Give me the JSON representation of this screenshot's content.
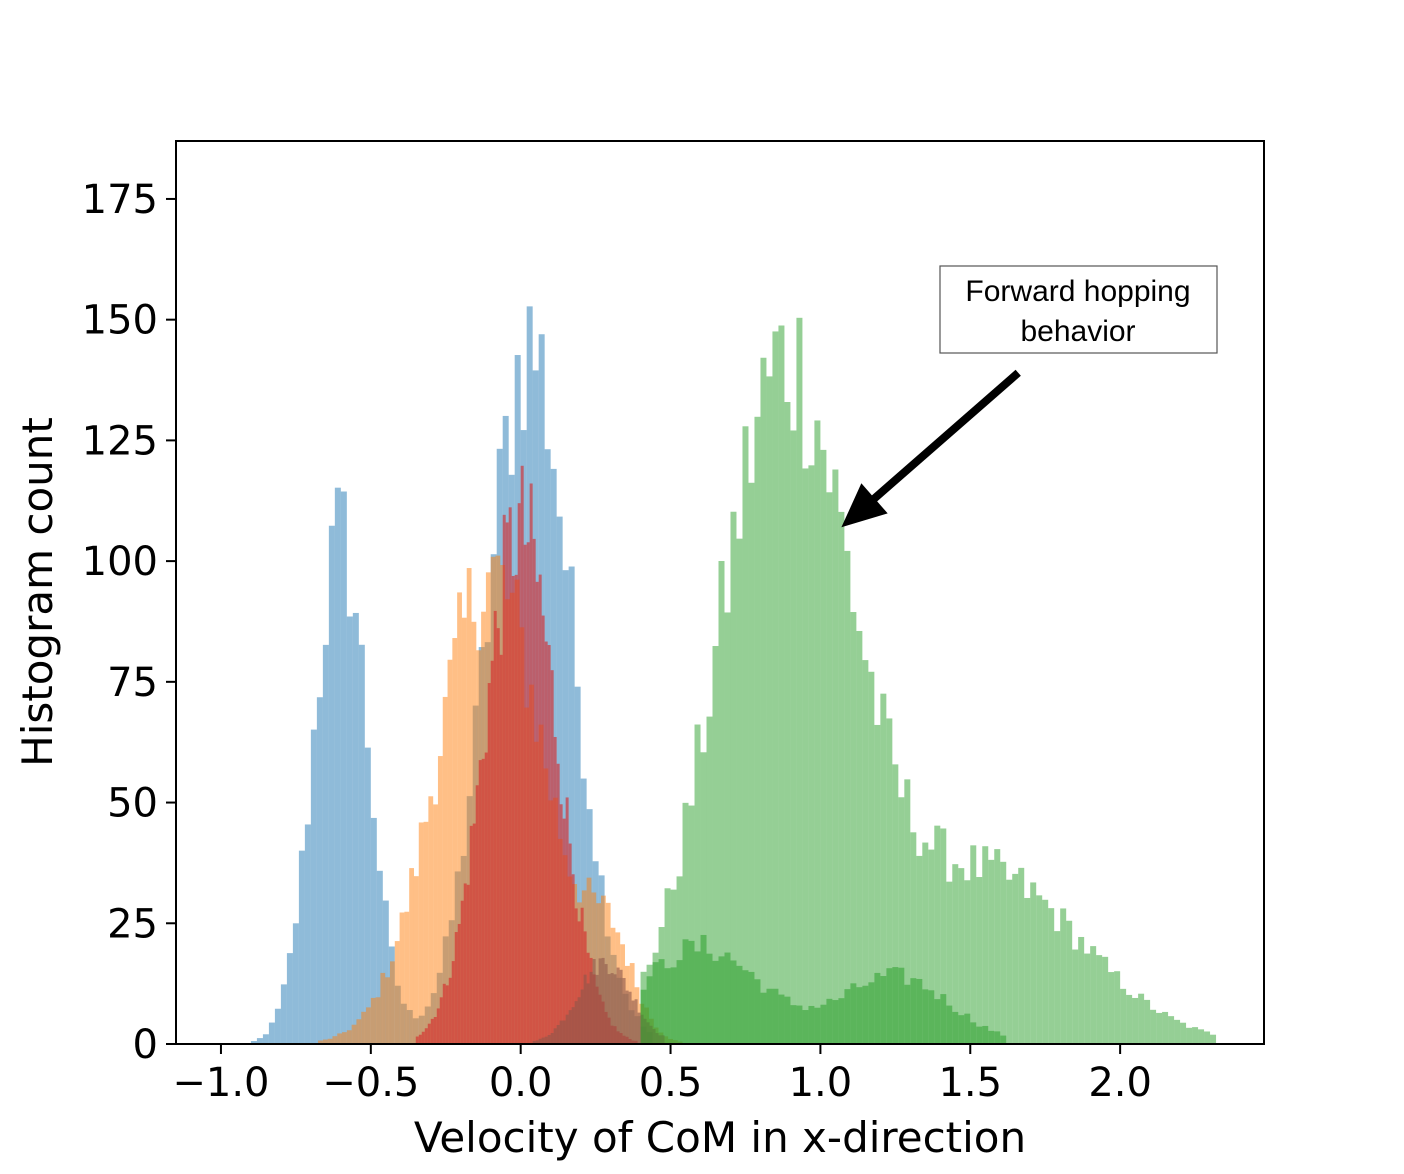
{
  "chart_data": {
    "type": "histogram",
    "title": "",
    "xlabel": "Velocity of CoM in x-direction",
    "ylabel": "Histogram count",
    "xlim": [
      -1.15,
      2.48
    ],
    "ylim": [
      0,
      187
    ],
    "x_ticks": [
      {
        "value": -1.0,
        "label": "−1.0"
      },
      {
        "value": -0.5,
        "label": "−0.5"
      },
      {
        "value": 0.0,
        "label": "0.0"
      },
      {
        "value": 0.5,
        "label": "0.5"
      },
      {
        "value": 1.0,
        "label": "1.0"
      },
      {
        "value": 1.5,
        "label": "1.5"
      },
      {
        "value": 2.0,
        "label": "2.0"
      }
    ],
    "y_ticks": [
      {
        "value": 0,
        "label": "0"
      },
      {
        "value": 25,
        "label": "25"
      },
      {
        "value": 50,
        "label": "50"
      },
      {
        "value": 75,
        "label": "75"
      },
      {
        "value": 100,
        "label": "100"
      },
      {
        "value": 125,
        "label": "125"
      },
      {
        "value": 150,
        "label": "150"
      },
      {
        "value": 175,
        "label": "175"
      }
    ],
    "grid": false,
    "legend": "none",
    "series": [
      {
        "color": "#1f77b4",
        "opacity": 0.5,
        "range": [
          -0.98,
          0.44
        ],
        "bin_width": 0.02,
        "peaks": [
          {
            "mu": -0.6,
            "sigma": 0.09,
            "amp": 105
          },
          {
            "mu": 0.03,
            "sigma": 0.14,
            "amp": 145
          }
        ]
      },
      {
        "color": "#ff7f0e",
        "opacity": 0.5,
        "range": [
          -0.98,
          0.54
        ],
        "bin_width": 0.016,
        "peaks": [
          {
            "mu": -0.1,
            "sigma": 0.18,
            "amp": 97
          },
          {
            "mu": 0.3,
            "sigma": 0.08,
            "amp": 18
          }
        ]
      },
      {
        "color": "#2ca02c",
        "opacity": 0.5,
        "range": [
          0.4,
          2.32
        ],
        "bin_width": 0.02,
        "peaks": [
          {
            "mu": 0.88,
            "sigma": 0.22,
            "amp": 138
          },
          {
            "mu": 1.55,
            "sigma": 0.32,
            "amp": 35
          }
        ]
      },
      {
        "color": "#d62728",
        "opacity": 0.62,
        "range": [
          -0.35,
          0.5
        ],
        "bin_width": 0.01,
        "peaks": [
          {
            "mu": 0.0,
            "sigma": 0.12,
            "amp": 107
          }
        ]
      },
      {
        "color": "#8c564b",
        "opacity": 0.6,
        "range": [
          -0.02,
          0.48
        ],
        "bin_width": 0.01,
        "peaks": [
          {
            "mu": 0.28,
            "sigma": 0.09,
            "amp": 17
          }
        ]
      },
      {
        "color": "#2ca02c",
        "opacity": 0.55,
        "range": [
          0.4,
          1.62
        ],
        "bin_width": 0.02,
        "peaks": [
          {
            "mu": 0.6,
            "sigma": 0.2,
            "amp": 20
          },
          {
            "mu": 1.25,
            "sigma": 0.18,
            "amp": 14
          }
        ]
      }
    ],
    "annotation": {
      "lines": [
        "Forward hopping",
        "behavior"
      ],
      "arrow_from": [
        1.66,
        139
      ],
      "arrow_to": [
        1.07,
        107
      ]
    }
  }
}
